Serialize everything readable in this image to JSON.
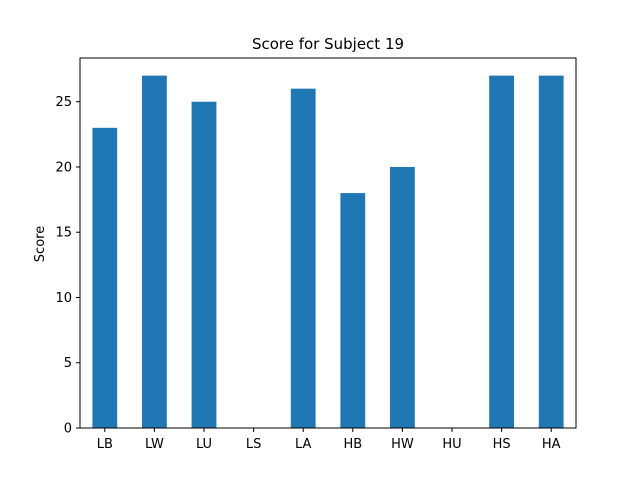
{
  "chart_data": {
    "type": "bar",
    "title": "Score for Subject 19",
    "xlabel": "",
    "ylabel": "Score",
    "categories": [
      "LB",
      "LW",
      "LU",
      "LS",
      "LA",
      "HB",
      "HW",
      "HU",
      "HS",
      "HA"
    ],
    "values": [
      23,
      27,
      25,
      0,
      26,
      18,
      20,
      0,
      27,
      27
    ],
    "ylim": [
      0,
      28.35
    ],
    "yticks": [
      0,
      5,
      10,
      15,
      20,
      25
    ],
    "bar_color": "#1f77b4",
    "grid": false,
    "legend": "none"
  }
}
